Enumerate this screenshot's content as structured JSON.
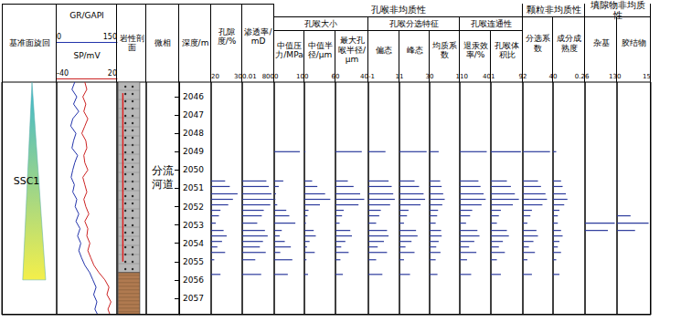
{
  "ylim": [
    2045.2,
    2057.9
  ],
  "sample_depths": [
    2049.0,
    2050.6,
    2050.9,
    2051.3,
    2051.6,
    2051.9,
    2052.2,
    2052.5,
    2052.9,
    2053.3,
    2053.6,
    2053.9,
    2054.2,
    2054.5,
    2054.9,
    2055.7
  ],
  "chart_data": [
    {
      "type": "cycle",
      "title": "基准面旋回",
      "label": "SSC1",
      "top": 2045.2,
      "bottom": 2056.0,
      "colors": [
        "#3ab7d0",
        "#f4ef4a"
      ]
    },
    {
      "type": "line",
      "y": [
        2045.2,
        2045.6,
        2046.0,
        2046.4,
        2046.8,
        2047.2,
        2047.6,
        2048.0,
        2048.4,
        2048.8,
        2049.2,
        2049.6,
        2050.0,
        2050.4,
        2050.8,
        2051.2,
        2051.6,
        2052.0,
        2052.4,
        2052.8,
        2053.2,
        2053.6,
        2054.0,
        2054.4,
        2054.8,
        2055.2,
        2055.6,
        2056.0,
        2056.4,
        2056.8,
        2057.2,
        2057.6,
        2057.9
      ],
      "series": [
        {
          "name": "GR/GAPI",
          "color": "#2233aa",
          "xlim": [
            0,
            150
          ],
          "xticks": [
            0,
            150
          ],
          "values": [
            45,
            38,
            50,
            42,
            55,
            40,
            35,
            48,
            42,
            38,
            52,
            45,
            40,
            36,
            44,
            40,
            50,
            46,
            55,
            48,
            58,
            52,
            60,
            55,
            62,
            70,
            82,
            90,
            98,
            92,
            100,
            95,
            102
          ]
        },
        {
          "name": "SP/mV",
          "color": "#cc2222",
          "xlim": [
            -40,
            20
          ],
          "xticks": [
            -40,
            20
          ],
          "values": [
            -12,
            -10,
            -14,
            -11,
            -13,
            -9,
            -12,
            -15,
            -11,
            -10,
            -13,
            -12,
            -9,
            -14,
            -12,
            -10,
            -13,
            -11,
            -8,
            -12,
            -9,
            -10,
            -7,
            -9,
            -6,
            -3,
            2,
            8,
            12,
            10,
            14,
            11,
            13
          ]
        }
      ]
    },
    {
      "type": "lithology",
      "title": "岩性剖面",
      "intervals": [
        {
          "top": 2045.2,
          "bottom": 2055.6,
          "color": "#b8b8b8",
          "marker": "dots"
        },
        {
          "top": 2055.6,
          "bottom": 2057.9,
          "color": "#b07a50",
          "marker": "lines"
        }
      ],
      "core": {
        "top": 2045.8,
        "bottom": 2055.0,
        "color": "#e02020"
      }
    },
    {
      "type": "facies",
      "title": "微相",
      "label": "分流河道",
      "top": 2045.2,
      "bottom": 2055.6
    },
    {
      "type": "depth",
      "title": "深度/m",
      "yticks": [
        2046,
        2047,
        2048,
        2049,
        2050,
        2051,
        2052,
        2053,
        2054,
        2055,
        2056,
        2057
      ]
    },
    {
      "type": "bar",
      "title": "孔隙度/%",
      "xlim": [
        20,
        30
      ],
      "xticks": [
        20,
        30
      ],
      "color": "#2b3a9c",
      "values": [
        null,
        24.5,
        26.0,
        28.5,
        27.0,
        25.5,
        23.0,
        22.5,
        21.5,
        24.0,
        25.0,
        23.5,
        22.0,
        24.5,
        21.0,
        23.0
      ]
    },
    {
      "type": "bar",
      "title": "渗透率/mD",
      "xlim": [
        0.01,
        800
      ],
      "xticks": [
        0.01,
        800
      ],
      "log": "x",
      "color": "#2b3a9c",
      "values": [
        null,
        50,
        120,
        300,
        600,
        200,
        20,
        10,
        2,
        30,
        80,
        15,
        5,
        40,
        1,
        8
      ]
    },
    {
      "type": "bar",
      "group": "孔喉非均质性",
      "subgroup": "孔喉大小",
      "title": "中值压力/MPa",
      "xlim": [
        0,
        10
      ],
      "xticks": [
        0,
        10
      ],
      "color": "#2b3a9c",
      "values": [
        8.5,
        3,
        1.5,
        0.6,
        0.4,
        1.0,
        4,
        5,
        7,
        2.5,
        1.8,
        3.5,
        5.5,
        2.0,
        6.0,
        4.5
      ]
    },
    {
      "type": "bar",
      "group": "孔喉非均质性",
      "subgroup": "孔喉大小",
      "title": "中值半径/μm",
      "xlim": [
        0,
        6
      ],
      "xticks": [
        0,
        6
      ],
      "color": "#2b3a9c",
      "values": [
        0.2,
        1.5,
        2.5,
        4.0,
        5.0,
        3.0,
        0.8,
        0.6,
        0.3,
        1.8,
        2.2,
        1.0,
        0.5,
        2.0,
        0.4,
        0.7
      ]
    },
    {
      "type": "bar",
      "group": "孔喉非均质性",
      "subgroup": "孔喉大小",
      "title": "最大孔喉半径/μm",
      "xlim": [
        0,
        40
      ],
      "xticks": [
        0,
        40
      ],
      "color": "#2b3a9c",
      "values": [
        32,
        15,
        22,
        30,
        35,
        28,
        10,
        8,
        5,
        18,
        20,
        12,
        7,
        16,
        6,
        9
      ]
    },
    {
      "type": "bar",
      "group": "孔喉非均质性",
      "subgroup": "孔喉分选特征",
      "title": "偏态",
      "xlim": [
        -1,
        1
      ],
      "xticks": [
        -1,
        1
      ],
      "color": "#2b3a9c",
      "values": [
        0.1,
        0.3,
        0.5,
        0.6,
        0.7,
        0.4,
        -0.2,
        -0.3,
        -0.5,
        0.2,
        0.3,
        0.0,
        -0.4,
        0.2,
        -0.5,
        -0.1
      ]
    },
    {
      "type": "bar",
      "group": "孔喉非均质性",
      "subgroup": "孔喉分选特征",
      "title": "峰态",
      "xlim": [
        1,
        3
      ],
      "xticks": [
        1,
        3
      ],
      "color": "#2b3a9c",
      "values": [
        2.8,
        2.0,
        2.3,
        2.6,
        2.7,
        2.4,
        1.6,
        1.5,
        1.3,
        2.1,
        2.2,
        1.8,
        1.4,
        2.0,
        1.3,
        1.7
      ]
    },
    {
      "type": "bar",
      "group": "孔喉非均质性",
      "subgroup": "孔喉分选特征",
      "title": "均质系数",
      "xlim": [
        0,
        1
      ],
      "xticks": [
        0,
        1
      ],
      "color": "#2b3a9c",
      "values": [
        0.3,
        0.35,
        0.4,
        0.45,
        0.5,
        0.42,
        0.28,
        0.25,
        0.2,
        0.38,
        0.4,
        0.3,
        0.22,
        0.36,
        0.2,
        0.26
      ]
    },
    {
      "type": "bar",
      "group": "孔喉非均质性",
      "subgroup": "孔喉连通性",
      "title": "退汞效率/%",
      "xlim": [
        10,
        40
      ],
      "xticks": [
        10,
        40
      ],
      "color": "#2b3a9c",
      "values": [
        36,
        28,
        30,
        33,
        35,
        31,
        22,
        20,
        16,
        27,
        29,
        24,
        19,
        26,
        17,
        21
      ]
    },
    {
      "type": "bar",
      "group": "孔喉非均质性",
      "subgroup": "孔喉连通性",
      "title": "孔喉体积比",
      "xlim": [
        1,
        9
      ],
      "xticks": [
        1,
        9
      ],
      "color": "#2b3a9c",
      "values": [
        8.5,
        5,
        6,
        7,
        8,
        6.5,
        3.5,
        3,
        2.5,
        5,
        5.5,
        4,
        3,
        4.5,
        2.5,
        3.5
      ]
    },
    {
      "type": "bar",
      "group": "颗粒非均质性",
      "title": "分选系数",
      "xlim": [
        2,
        4
      ],
      "xticks": [
        2,
        4
      ],
      "color": "#2b3a9c",
      "values": [
        3.8,
        3.0,
        3.2,
        3.5,
        3.6,
        3.3,
        2.6,
        2.5,
        2.3,
        2.9,
        3.0,
        2.7,
        2.4,
        2.8,
        2.3,
        2.6
      ]
    },
    {
      "type": "bar",
      "group": "颗粒非均质性",
      "title": "成分成熟度",
      "xlim": [
        0,
        0.2
      ],
      "xticks": [
        0,
        0.2
      ],
      "color": "#2b3a9c",
      "values": [
        0.02,
        0.05,
        0.06,
        0.08,
        0.09,
        0.07,
        0.04,
        0.03,
        0.03,
        0.05,
        0.06,
        0.04,
        0.03,
        0.05,
        0.02,
        0.04
      ]
    },
    {
      "type": "bar",
      "group": "填隙物非均质性",
      "title": "杂基",
      "xlim": [
        6,
        13
      ],
      "xticks": [
        6,
        13
      ],
      "color": "#2b3a9c",
      "values": [
        null,
        null,
        null,
        null,
        null,
        null,
        null,
        null,
        12.5,
        11.0,
        null,
        null,
        null,
        null,
        null,
        null
      ]
    },
    {
      "type": "bar",
      "group": "填隙物非均质性",
      "title": "胶结物",
      "xlim": [
        0,
        15
      ],
      "xticks": [
        0,
        15
      ],
      "color": "#2b3a9c",
      "values": [
        null,
        null,
        null,
        null,
        null,
        null,
        null,
        6,
        14,
        8,
        null,
        null,
        null,
        null,
        null,
        null
      ]
    }
  ]
}
